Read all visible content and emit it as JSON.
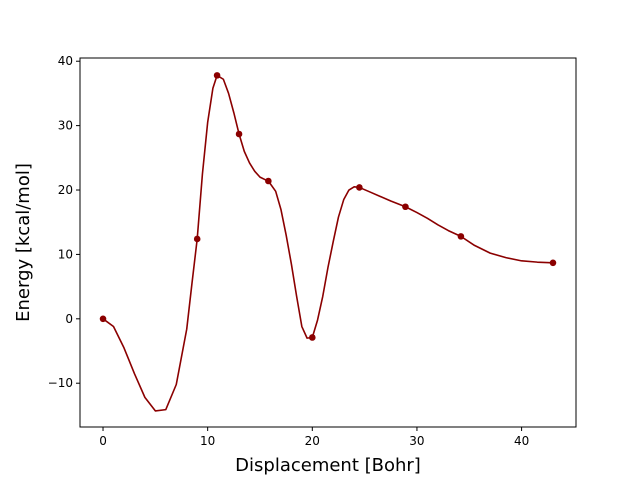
{
  "chart_data": {
    "type": "line",
    "title": "",
    "xlabel": "Displacement [Bohr]",
    "ylabel": "Energy [kcal/mol]",
    "xlim": [
      -2.2,
      45.2
    ],
    "ylim": [
      -16.8,
      40.5
    ],
    "xticks": [
      0,
      10,
      20,
      30,
      40
    ],
    "yticks": [
      -10,
      0,
      10,
      20,
      30,
      40
    ],
    "grid": false,
    "legend": "none",
    "colors": {
      "series": "#8b0000",
      "axes": "#000000",
      "background": "#ffffff"
    },
    "series": [
      {
        "kind": "markers",
        "x": [
          0,
          9.0,
          10.9,
          13.0,
          15.8,
          20.0,
          24.5,
          28.9,
          34.2,
          43.0
        ],
        "y": [
          0,
          12.4,
          37.8,
          28.7,
          21.4,
          -2.9,
          20.4,
          17.4,
          12.8,
          8.7
        ]
      },
      {
        "kind": "curve",
        "x": [
          0,
          1.0,
          2.0,
          3.0,
          4.0,
          5.0,
          6.0,
          7.0,
          8.0,
          8.5,
          9.0,
          9.5,
          10.0,
          10.5,
          10.9,
          11.5,
          12.0,
          12.5,
          13.0,
          13.5,
          14.0,
          14.5,
          15.0,
          15.5,
          15.8,
          16.5,
          17.0,
          17.5,
          18.0,
          18.5,
          19.0,
          19.5,
          20.0,
          20.5,
          21.0,
          21.5,
          22.0,
          22.5,
          23.0,
          23.5,
          24.0,
          24.5,
          25.5,
          26.5,
          27.5,
          28.9,
          30.0,
          31.0,
          32.0,
          33.0,
          34.2,
          35.5,
          37.0,
          38.5,
          40.0,
          41.5,
          43.0
        ],
        "y": [
          0,
          -1.2,
          -4.5,
          -8.5,
          -12.2,
          -14.3,
          -14.1,
          -10.2,
          -1.6,
          5.5,
          12.4,
          22.5,
          30.5,
          35.8,
          37.8,
          37.2,
          35.0,
          32.0,
          28.7,
          26.0,
          24.2,
          22.9,
          22.0,
          21.6,
          21.4,
          19.8,
          17.0,
          13.0,
          8.5,
          3.5,
          -1.2,
          -3.0,
          -2.9,
          -0.2,
          3.5,
          8.0,
          12.0,
          15.8,
          18.5,
          20.0,
          20.5,
          20.4,
          19.7,
          19.0,
          18.3,
          17.4,
          16.5,
          15.6,
          14.6,
          13.7,
          12.8,
          11.4,
          10.2,
          9.5,
          9.0,
          8.8,
          8.7
        ]
      }
    ]
  }
}
